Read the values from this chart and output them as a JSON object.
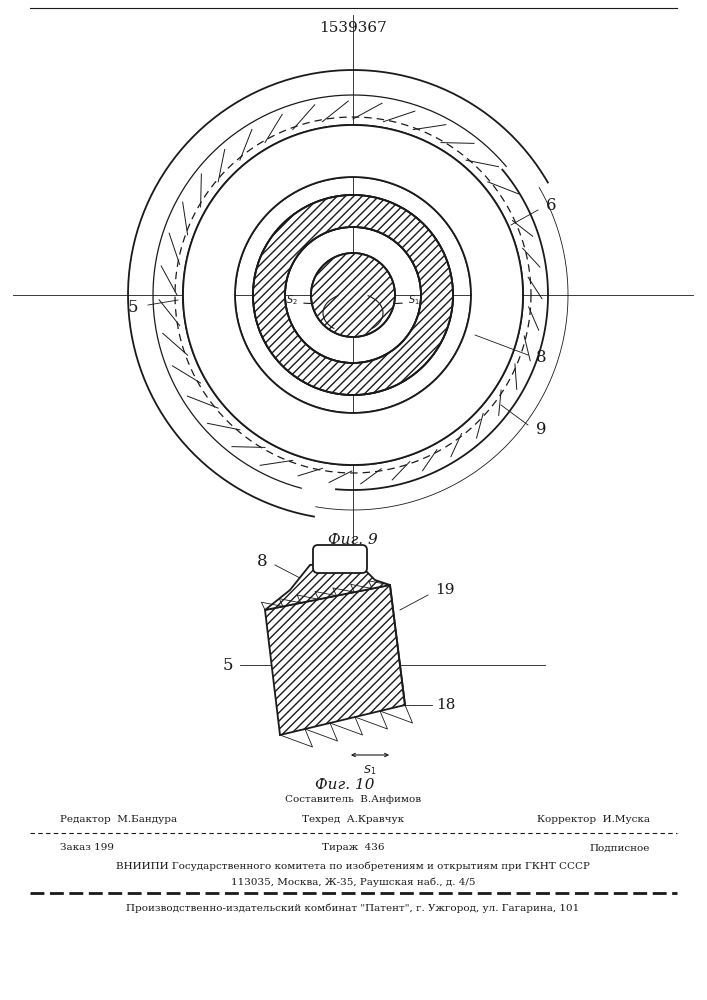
{
  "patent_number": "1539367",
  "fig9_label": "Фиг. 9",
  "fig10_label": "Фиг. 10",
  "bg_color": "#ffffff",
  "line_color": "#1a1a1a",
  "footer": {
    "sestavitel": "Составитель  В.Анфимов",
    "redaktor": "Редактор  М.Бандура",
    "tehred": "Техред  А.Кравчук",
    "korrektor": "Корректор  И.Муска",
    "zakaz": "Заказ 199",
    "tirazh": "Тираж  436",
    "podpisnoe": "Подписное",
    "vniip1": "ВНИИПИ Государственного комитета по изобретениям и открытиям при ГКНТ СССР",
    "vniip2": "113035, Москва, Ж-35, Раушская наб., д. 4/5",
    "kombnat": "Производственно-издательский комбинат \"Патент\", г. Ужгород, ул. Гагарина, 101"
  }
}
